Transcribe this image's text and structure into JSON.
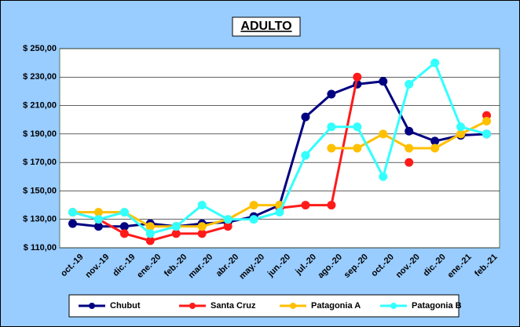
{
  "chart_data": {
    "type": "line",
    "title": "ADULTO",
    "categories": [
      "oct.-19",
      "nov.-19",
      "dic.-19",
      "ene.-20",
      "feb.-20",
      "mar.-20",
      "abr.-20",
      "may.-20",
      "jun.-20",
      "jul.-20",
      "ago.-20",
      "sep.-20",
      "oct.-20",
      "nov.-20",
      "dic.-20",
      "ene.-21",
      "feb.-21"
    ],
    "series": [
      {
        "name": "Chubut",
        "color": "#000080",
        "values": [
          127,
          125,
          125,
          127,
          125,
          127,
          128,
          132,
          140,
          202,
          218,
          225,
          227,
          192,
          185,
          189,
          190
        ]
      },
      {
        "name": "Santa Cruz",
        "color": "#ff1a1a",
        "values": [
          135,
          130,
          120,
          115,
          120,
          120,
          125,
          null,
          138,
          140,
          140,
          230,
          null,
          170,
          null,
          null,
          203
        ]
      },
      {
        "name": "Patagonia A",
        "color": "#ffc000",
        "values": [
          135,
          135,
          135,
          125,
          125,
          125,
          130,
          140,
          140,
          null,
          180,
          180,
          190,
          180,
          180,
          190,
          199
        ]
      },
      {
        "name": "Patagonia B",
        "color": "#33ffff",
        "values": [
          135,
          130,
          135,
          120,
          125,
          140,
          130,
          130,
          135,
          175,
          195,
          195,
          160,
          225,
          240,
          195,
          190
        ]
      }
    ],
    "ylim": [
      110,
      250
    ],
    "yticks": [
      {
        "value": 110,
        "label": "$ 110,00"
      },
      {
        "value": 130,
        "label": "$ 130,00"
      },
      {
        "value": 150,
        "label": "$ 150,00"
      },
      {
        "value": 170,
        "label": "$ 170,00"
      },
      {
        "value": 190,
        "label": "$ 190,00"
      },
      {
        "value": 210,
        "label": "$ 210,00"
      },
      {
        "value": 230,
        "label": "$ 230,00"
      },
      {
        "value": 250,
        "label": "$ 250,00"
      }
    ],
    "grid": true,
    "legend": "bottom"
  }
}
